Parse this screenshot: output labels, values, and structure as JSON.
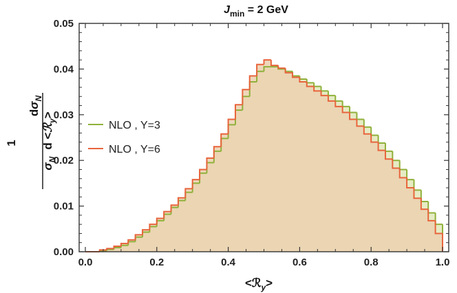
{
  "chart_data": {
    "type": "histogram",
    "title": "J_min = 2 GeV",
    "title_parts": {
      "symbol": "J",
      "subscript": "min",
      "rest": " = 2 GeV"
    },
    "xlabel": "<ℛ_y>",
    "xlabel_parts": {
      "open": "<ℛ",
      "subscript": "y",
      "close": ">"
    },
    "ylabel": "1/σ_N dσ_N/d<ℛ_y>",
    "ylabel_parts": {
      "one": "1",
      "sigma": "σ",
      "sub": "N",
      "num_d": "d",
      "den_d": "d <",
      "r": "ℛ",
      "r_sub": "y",
      "close": ">"
    },
    "xlim": [
      0.0,
      1.0
    ],
    "ylim": [
      0.0,
      0.05
    ],
    "xticks": [
      "0.0",
      "0.2",
      "0.4",
      "0.6",
      "0.8",
      "1.0"
    ],
    "yticks": [
      "0.00",
      "0.01",
      "0.02",
      "0.03",
      "0.04",
      "0.05"
    ],
    "bin_edges_start": 0.0,
    "bin_width": 0.02,
    "grid": false,
    "legend_position": "left-middle",
    "series": [
      {
        "name": "NLO , Y=3",
        "color": "#8fb13a",
        "fill": "#e6ebc4",
        "values": [
          0.0,
          0.0,
          0.0002,
          0.0005,
          0.0009,
          0.0014,
          0.0022,
          0.0032,
          0.0043,
          0.0055,
          0.0068,
          0.0082,
          0.0097,
          0.0112,
          0.013,
          0.015,
          0.0172,
          0.0195,
          0.022,
          0.0248,
          0.0278,
          0.031,
          0.034,
          0.0372,
          0.0395,
          0.0405,
          0.0405,
          0.04,
          0.0395,
          0.0385,
          0.0378,
          0.037,
          0.0362,
          0.0352,
          0.0342,
          0.033,
          0.0318,
          0.0305,
          0.029,
          0.0273,
          0.0255,
          0.0238,
          0.022,
          0.02,
          0.018,
          0.0158,
          0.0135,
          0.011,
          0.0085,
          0.006
        ]
      },
      {
        "name": "NLO , Y=6",
        "color": "#e8643c",
        "fill": "#ecd2b0",
        "values": [
          0.0,
          0.0,
          0.0004,
          0.0007,
          0.0012,
          0.0018,
          0.0026,
          0.0037,
          0.0048,
          0.006,
          0.0073,
          0.0088,
          0.0102,
          0.0118,
          0.0138,
          0.0158,
          0.018,
          0.0205,
          0.023,
          0.0258,
          0.029,
          0.0322,
          0.0355,
          0.0385,
          0.041,
          0.042,
          0.0408,
          0.0402,
          0.0392,
          0.0382,
          0.0372,
          0.0362,
          0.0352,
          0.0342,
          0.033,
          0.0318,
          0.0305,
          0.029,
          0.0275,
          0.0258,
          0.024,
          0.0222,
          0.0203,
          0.0183,
          0.0162,
          0.014,
          0.0117,
          0.0093,
          0.0068,
          0.004
        ]
      }
    ]
  }
}
